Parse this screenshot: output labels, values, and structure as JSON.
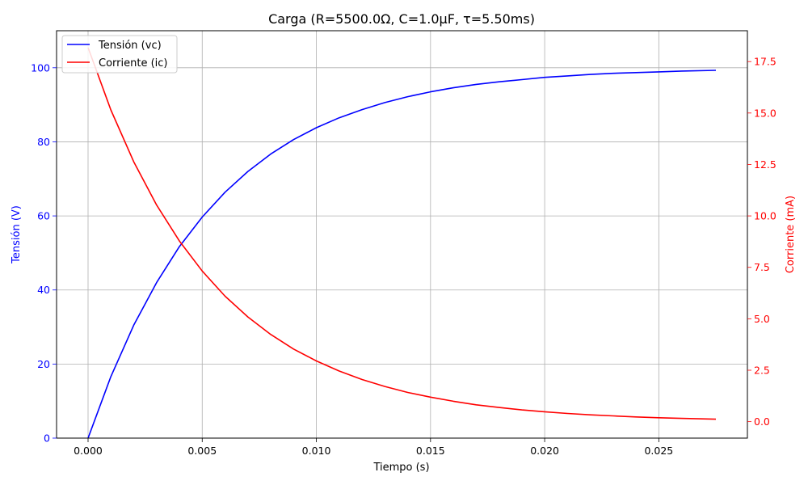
{
  "chart_data": {
    "type": "line",
    "title": "Carga (R=5500.0Ω, C=1.0μF, τ=5.50ms)",
    "xlabel": "Tiempo (s)",
    "ylabel_left": "Tensión (V)",
    "ylabel_right": "Corriente (mA)",
    "xlim": [
      -0.00138,
      0.02888
    ],
    "ylim_left": [
      0,
      110
    ],
    "ylim_right": [
      -0.8,
      19.0
    ],
    "x_ticks": [
      0.0,
      0.005,
      0.01,
      0.015,
      0.02,
      0.025
    ],
    "x_tick_labels": [
      "0.000",
      "0.005",
      "0.010",
      "0.015",
      "0.020",
      "0.025"
    ],
    "y_left_ticks": [
      0,
      20,
      40,
      60,
      80,
      100
    ],
    "y_left_tick_labels": [
      "0",
      "20",
      "40",
      "60",
      "80",
      "100"
    ],
    "y_right_ticks": [
      0.0,
      2.5,
      5.0,
      7.5,
      10.0,
      12.5,
      15.0,
      17.5
    ],
    "y_right_tick_labels": [
      "0.0",
      "2.5",
      "5.0",
      "7.5",
      "10.0",
      "12.5",
      "15.0",
      "17.5"
    ],
    "grid": true,
    "legend_position": "top-left",
    "series": [
      {
        "name": "Tensión (vc)",
        "axis": "left",
        "color": "#0000ff",
        "x": [
          0.0,
          0.001,
          0.002,
          0.003,
          0.004,
          0.005,
          0.006,
          0.007,
          0.008,
          0.009,
          0.01,
          0.011,
          0.012,
          0.013,
          0.014,
          0.015,
          0.016,
          0.017,
          0.018,
          0.019,
          0.02,
          0.021,
          0.022,
          0.023,
          0.024,
          0.025,
          0.026,
          0.0275
        ],
        "values": [
          0.0,
          16.6,
          30.5,
          42.0,
          51.7,
          59.7,
          66.4,
          72.0,
          76.7,
          80.6,
          83.8,
          86.5,
          88.7,
          90.6,
          92.2,
          93.5,
          94.6,
          95.5,
          96.2,
          96.8,
          97.4,
          97.8,
          98.2,
          98.5,
          98.7,
          98.9,
          99.1,
          99.3
        ]
      },
      {
        "name": "Corriente (ic)",
        "axis": "right",
        "color": "#ff0000",
        "x": [
          0.0,
          0.001,
          0.002,
          0.003,
          0.004,
          0.005,
          0.006,
          0.007,
          0.008,
          0.009,
          0.01,
          0.011,
          0.012,
          0.013,
          0.014,
          0.015,
          0.016,
          0.017,
          0.018,
          0.019,
          0.02,
          0.021,
          0.022,
          0.023,
          0.024,
          0.025,
          0.026,
          0.0275
        ],
        "values": [
          18.18,
          15.15,
          12.63,
          10.53,
          8.78,
          7.32,
          6.1,
          5.09,
          4.24,
          3.53,
          2.95,
          2.46,
          2.05,
          1.71,
          1.42,
          1.19,
          0.99,
          0.82,
          0.69,
          0.57,
          0.48,
          0.4,
          0.33,
          0.28,
          0.23,
          0.19,
          0.16,
          0.12
        ]
      }
    ]
  }
}
